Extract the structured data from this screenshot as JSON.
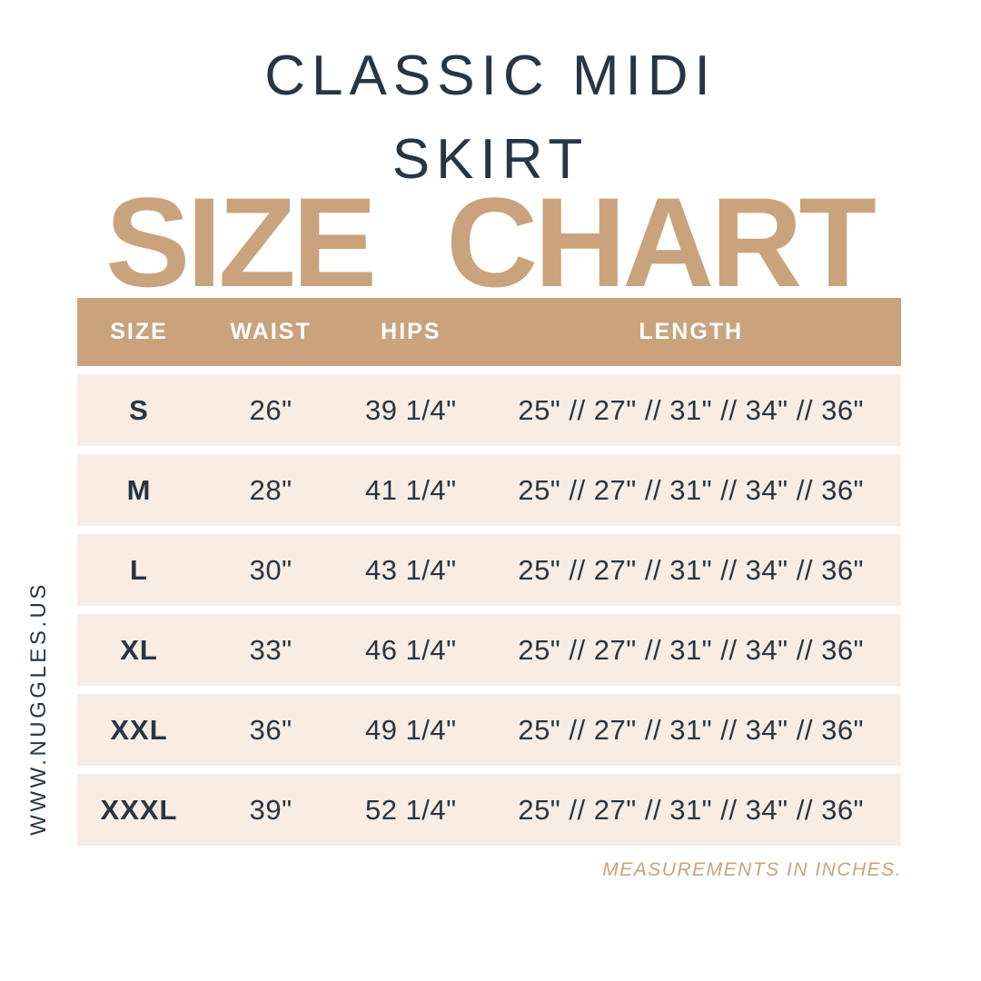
{
  "header": {
    "title_line1": "CLASSIC MIDI",
    "title_line2": "SKIRT",
    "heading": "SIZE CHART"
  },
  "sidebar": {
    "website": "WWW.NUGGLES.US"
  },
  "footer": {
    "note": "MEASUREMENTS IN INCHES."
  },
  "colors": {
    "navy": "#273645",
    "tan": "#c9a37c",
    "cream": "#f8ece3",
    "header_text": "#ffffff",
    "bg": "#ffffff"
  },
  "chart_data": {
    "type": "table",
    "title": "SIZE CHART",
    "subtitle": "CLASSIC MIDI SKIRT",
    "units": "inches",
    "columns": [
      "SIZE",
      "WAIST",
      "HIPS",
      "LENGTH"
    ],
    "rows": [
      [
        "S",
        "26\"",
        "39 1/4\"",
        "25\" // 27\" // 31\" // 34\" // 36\""
      ],
      [
        "M",
        "28\"",
        "41 1/4\"",
        "25\" // 27\" // 31\" // 34\" // 36\""
      ],
      [
        "L",
        "30\"",
        "43 1/4\"",
        "25\" // 27\" // 31\" // 34\" // 36\""
      ],
      [
        "XL",
        "33\"",
        "46 1/4\"",
        "25\" // 27\" // 31\" // 34\" // 36\""
      ],
      [
        "XXL",
        "36\"",
        "49 1/4\"",
        "25\" // 27\" // 31\" // 34\" // 36\""
      ],
      [
        "XXXL",
        "39\"",
        "52 1/4\"",
        "25\" // 27\" // 31\" // 34\" // 36\""
      ]
    ],
    "footnote": "MEASUREMENTS IN INCHES."
  }
}
